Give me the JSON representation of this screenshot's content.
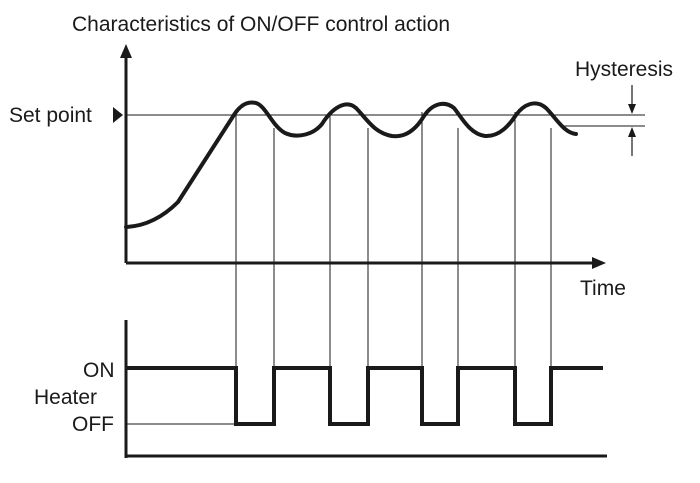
{
  "title": "Characteristics of ON/OFF control action",
  "labels": {
    "set_point": "Set point",
    "hysteresis": "Hysteresis",
    "time": "Time",
    "on": "ON",
    "heater": "Heater",
    "off": "OFF"
  },
  "colors": {
    "ink": "#1a1a1a",
    "background": "#ffffff"
  }
}
